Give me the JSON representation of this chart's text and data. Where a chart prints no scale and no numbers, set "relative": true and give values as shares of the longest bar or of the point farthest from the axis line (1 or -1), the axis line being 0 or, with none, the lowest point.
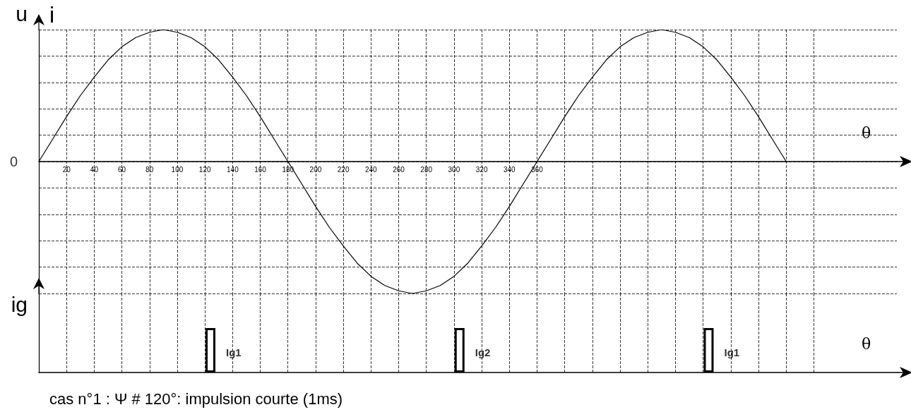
{
  "chart_data": [
    {
      "type": "line",
      "relative": true,
      "ylabel": "u",
      "xlabel": "θ",
      "annotations": [
        "i",
        {
          "text": "0",
          "x": 0,
          "y": 0
        }
      ],
      "grid": true,
      "marker": "none",
      "line_style": "solid",
      "xlim": [
        0,
        620
      ],
      "xticks": [
        20,
        40,
        60,
        80,
        100,
        120,
        140,
        160,
        180,
        200,
        220,
        240,
        260,
        280,
        300,
        320,
        340,
        360,
        {
          "value": 380,
          "label": null
        },
        {
          "value": 400,
          "label": null
        },
        {
          "value": 420,
          "label": null
        },
        {
          "value": 440,
          "label": null
        },
        {
          "value": 460,
          "label": null
        },
        {
          "value": 480,
          "label": null
        },
        {
          "value": 500,
          "label": null
        },
        {
          "value": 520,
          "label": null
        },
        {
          "value": 540,
          "label": null
        },
        {
          "value": 560,
          "label": null
        }
      ],
      "x": [
        0,
        10,
        20,
        30,
        40,
        50,
        60,
        70,
        80,
        90,
        100,
        110,
        120,
        130,
        140,
        150,
        160,
        170,
        180,
        190,
        200,
        210,
        220,
        230,
        240,
        250,
        260,
        270,
        280,
        290,
        300,
        310,
        320,
        330,
        340,
        350,
        360,
        370,
        380,
        390,
        400,
        410,
        420,
        430,
        440,
        450,
        460,
        470,
        480,
        490,
        500,
        510,
        520,
        530,
        540
      ],
      "series": [
        {
          "color": "#000000",
          "values": [
            0,
            0.17,
            0.34,
            0.5,
            0.64,
            0.77,
            0.87,
            0.94,
            0.98,
            1,
            0.98,
            0.94,
            0.87,
            0.77,
            0.64,
            0.5,
            0.34,
            0.17,
            0,
            -0.17,
            -0.34,
            -0.5,
            -0.64,
            -0.77,
            -0.87,
            -0.94,
            -0.98,
            -1,
            -0.98,
            -0.94,
            -0.87,
            -0.77,
            -0.64,
            -0.5,
            -0.34,
            -0.17,
            0,
            0.17,
            0.34,
            0.5,
            0.64,
            0.77,
            0.87,
            0.94,
            0.98,
            1,
            0.98,
            0.94,
            0.87,
            0.77,
            0.64,
            0.5,
            0.34,
            0.17,
            0
          ]
        }
      ]
    },
    {
      "type": "bar",
      "relative": true,
      "ylabel": "ig",
      "xlabel": "θ",
      "grid": "x",
      "tick_labels": false,
      "annotations": [
        "cas n°1 : Ψ # 120°: impulsion courte (1ms)",
        {
          "text": "Ig1",
          "x": 124,
          "y": 0.45
        },
        {
          "text": "Ig2",
          "x": 304,
          "y": 0.45
        },
        {
          "text": "Ig1",
          "x": 484,
          "y": 0.45
        }
      ],
      "xlim": [
        0,
        620
      ],
      "xticks": [
        20,
        40,
        60,
        80,
        100,
        120,
        140,
        160,
        180,
        200,
        220,
        240,
        260,
        280,
        300,
        320,
        340,
        360,
        380,
        400,
        420,
        440,
        460,
        480,
        500,
        520,
        540,
        560
      ],
      "x": [
        124,
        304,
        484
      ],
      "series": [
        {
          "color": "#000000",
          "values": [
            1,
            1,
            1
          ]
        }
      ]
    }
  ]
}
